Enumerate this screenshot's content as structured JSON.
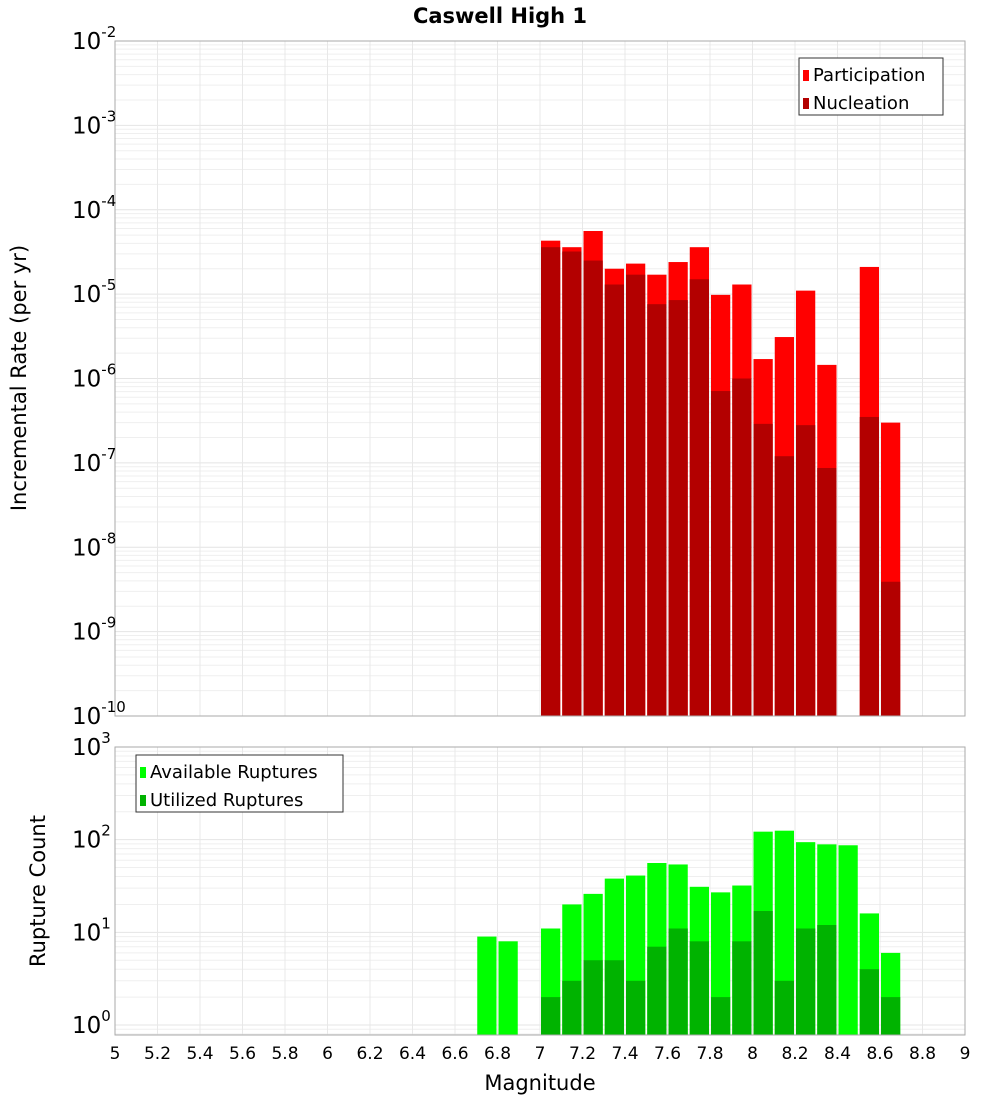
{
  "chart_data": [
    {
      "type": "bar",
      "title": "Caswell High 1",
      "xlabel": "",
      "ylabel": "Incremental Rate (per yr)",
      "yscale": "log",
      "xlim": [
        5,
        9
      ],
      "ylim": [
        1e-10,
        0.01
      ],
      "grid": true,
      "legend_position": "top-right",
      "bin_width": 0.1,
      "x": [
        7.05,
        7.15,
        7.25,
        7.35,
        7.45,
        7.55,
        7.65,
        7.75,
        7.85,
        7.95,
        8.05,
        8.15,
        8.25,
        8.35,
        8.55,
        8.65
      ],
      "series": [
        {
          "name": "Participation",
          "color": "#ff0000",
          "values": [
            4.3e-05,
            3.6e-05,
            5.6e-05,
            2e-05,
            2.3e-05,
            1.7e-05,
            2.4e-05,
            3.6e-05,
            9.8e-06,
            1.3e-05,
            1.7e-06,
            3.1e-06,
            1.1e-05,
            1.45e-06,
            2.1e-05,
            3e-07
          ]
        },
        {
          "name": "Nucleation",
          "color": "#b30000",
          "values": [
            3.6e-05,
            3.2e-05,
            2.5e-05,
            1.3e-05,
            1.7e-05,
            7.6e-06,
            8.5e-06,
            1.5e-05,
            7.1e-07,
            1e-06,
            2.9e-07,
            1.2e-07,
            2.8e-07,
            8.7e-08,
            3.5e-07,
            3.9e-09
          ]
        }
      ],
      "yticks": [
        {
          "base": "10",
          "exp": "-2"
        },
        {
          "base": "10",
          "exp": "-3"
        },
        {
          "base": "10",
          "exp": "-4"
        },
        {
          "base": "10",
          "exp": "-5"
        },
        {
          "base": "10",
          "exp": "-6"
        },
        {
          "base": "10",
          "exp": "-7"
        },
        {
          "base": "10",
          "exp": "-8"
        },
        {
          "base": "10",
          "exp": "-9"
        },
        {
          "base": "10",
          "exp": "-10"
        }
      ]
    },
    {
      "type": "bar",
      "title": "",
      "xlabel": "Magnitude",
      "ylabel": "Rupture Count",
      "yscale": "log",
      "xlim": [
        5,
        9
      ],
      "ylim": [
        0.78,
        1000
      ],
      "grid": true,
      "legend_position": "top-left",
      "bin_width": 0.1,
      "x": [
        6.75,
        6.85,
        7.05,
        7.15,
        7.25,
        7.35,
        7.45,
        7.55,
        7.65,
        7.75,
        7.85,
        7.95,
        8.05,
        8.15,
        8.25,
        8.35,
        8.45,
        8.55,
        8.65
      ],
      "series": [
        {
          "name": "Available Ruptures",
          "color": "#00ff00",
          "values": [
            9,
            8,
            11,
            20,
            26,
            38,
            41,
            56,
            54,
            31,
            27,
            32,
            122,
            125,
            94,
            89,
            87,
            16,
            6
          ]
        },
        {
          "name": "Utilized Ruptures",
          "color": "#00b300",
          "values": [
            0,
            0,
            2,
            3,
            5,
            5,
            3,
            7,
            11,
            8,
            2,
            8,
            17,
            3,
            11,
            12,
            0,
            4,
            2
          ]
        }
      ],
      "yticks": [
        {
          "base": "10",
          "exp": "3"
        },
        {
          "base": "10",
          "exp": "2"
        },
        {
          "base": "10",
          "exp": "1"
        },
        {
          "base": "10",
          "exp": "0"
        }
      ],
      "xticks": [
        "5",
        "5.2",
        "5.4",
        "5.6",
        "5.8",
        "6",
        "6.2",
        "6.4",
        "6.6",
        "6.8",
        "7",
        "7.2",
        "7.4",
        "7.6",
        "7.8",
        "8",
        "8.2",
        "8.4",
        "8.6",
        "8.8",
        "9"
      ]
    }
  ]
}
